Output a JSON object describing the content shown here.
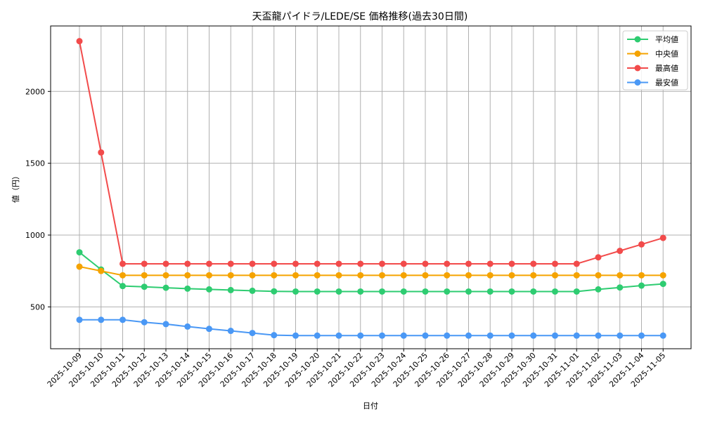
{
  "chart_data": {
    "type": "line",
    "title": "天盃龍パイドラ/LEDE/SE 価格推移(過去30日間)",
    "xlabel": "日付",
    "ylabel": "値（円）",
    "ylim": [
      200,
      2450
    ],
    "yticks": [
      500,
      1000,
      1500,
      2000
    ],
    "grid": true,
    "legend_position": "upper right",
    "categories": [
      "2025-10-09",
      "2025-10-10",
      "2025-10-11",
      "2025-10-12",
      "2025-10-13",
      "2025-10-14",
      "2025-10-15",
      "2025-10-16",
      "2025-10-17",
      "2025-10-18",
      "2025-10-19",
      "2025-10-20",
      "2025-10-21",
      "2025-10-22",
      "2025-10-23",
      "2025-10-24",
      "2025-10-25",
      "2025-10-26",
      "2025-10-27",
      "2025-10-28",
      "2025-10-29",
      "2025-10-30",
      "2025-10-31",
      "2025-11-01",
      "2025-11-02",
      "2025-11-03",
      "2025-11-04",
      "2025-11-05"
    ],
    "series": [
      {
        "name": "平均値",
        "color": "#2ecc71",
        "values": [
          880,
          760,
          645,
          640,
          633,
          627,
          622,
          617,
          612,
          608,
          607,
          607,
          607,
          607,
          607,
          607,
          607,
          607,
          607,
          607,
          607,
          607,
          607,
          607,
          622,
          635,
          648,
          660
        ]
      },
      {
        "name": "中央値",
        "color": "#f5a300",
        "values": [
          780,
          750,
          720,
          720,
          720,
          720,
          720,
          720,
          720,
          720,
          720,
          720,
          720,
          720,
          720,
          720,
          720,
          720,
          720,
          720,
          720,
          720,
          720,
          720,
          720,
          720,
          720,
          720
        ]
      },
      {
        "name": "最高値",
        "color": "#f24b4b",
        "values": [
          2350,
          1575,
          800,
          800,
          800,
          800,
          800,
          800,
          800,
          800,
          800,
          800,
          800,
          800,
          800,
          800,
          800,
          800,
          800,
          800,
          800,
          800,
          800,
          800,
          845,
          890,
          935,
          980
        ]
      },
      {
        "name": "最安値",
        "color": "#4a98f5",
        "values": [
          410,
          410,
          410,
          393,
          380,
          363,
          347,
          333,
          318,
          303,
          300,
          300,
          300,
          300,
          300,
          300,
          300,
          300,
          300,
          300,
          300,
          300,
          300,
          300,
          300,
          300,
          300,
          300
        ]
      }
    ]
  }
}
